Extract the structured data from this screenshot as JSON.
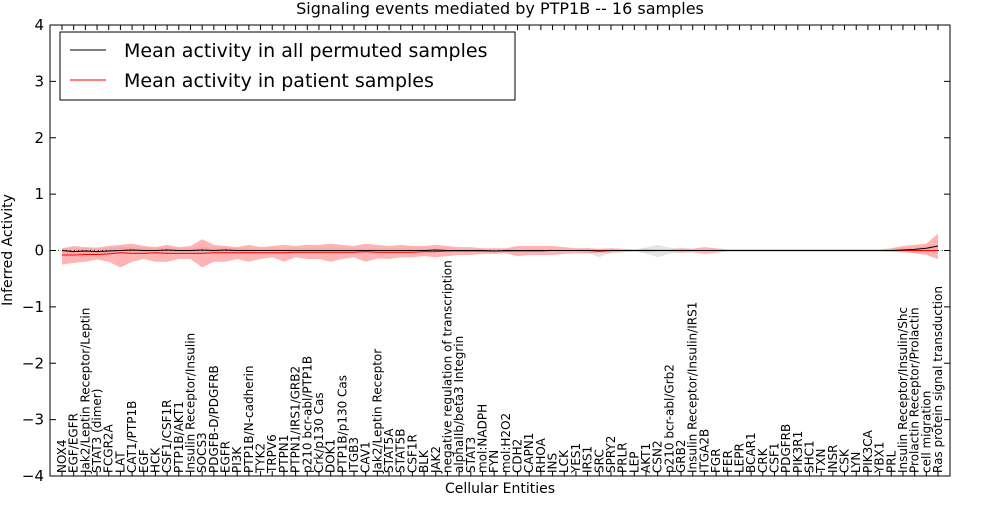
{
  "chart_data": {
    "type": "line",
    "title": "Signaling events mediated by PTP1B -- 16 samples",
    "xlabel": "Cellular Entities",
    "ylabel": "Inferred Activity",
    "ylim": [
      -4,
      4
    ],
    "yticks": [
      "4",
      "3",
      "2",
      "1",
      "0",
      "−1",
      "−2",
      "−3",
      "−4"
    ],
    "ytick_values": [
      4,
      3,
      2,
      1,
      0,
      -1,
      -2,
      -3,
      -4
    ],
    "legend_location": "top-left",
    "categories": [
      "NOX4",
      "EGF/EGFR",
      "Jak2/Leptin Receptor/Leptin",
      "STAT3 (dimer)",
      "FCGR2A",
      "LAT",
      "CAT1/PTP1B",
      "EGF",
      "HCK",
      "CSF1/CSF1R",
      "PTP1B/AKT1",
      "Insulin Receptor/Insulin",
      "SOCS3",
      "PDGFB-D/PDGFRB",
      "EGFR",
      "PI3K",
      "PTP1B/N-cadherin",
      "TYK2",
      "TRPV6",
      "PTPN1",
      "PTPN1/IRS1/GRB2",
      "p210 bcr-abl/PTP1B",
      "Crk/p130 Cas",
      "DOK1",
      "PTP1B/p130 Cas",
      "ITGB3",
      "CAV1",
      "Jak2/Leptin Receptor",
      "STAT5A",
      "STAT5B",
      "CSF1R",
      "BLK",
      "JAK2",
      "negative regulation of transcription",
      "alphaIIb/beta3 Integrin",
      "STAT3",
      "mol:NADPH",
      "FYN",
      "mol:H2O2",
      "CDH2",
      "CAPN1",
      "RHOA",
      "INS",
      "LCK",
      "YES1",
      "IRS1",
      "SRC",
      "SPRY2",
      "PRLR",
      "LEP",
      "AKT1",
      "CSN2",
      "p210 bcr-abl/Grb2",
      "GRB2",
      "Insulin Receptor/Insulin/IRS1",
      "ITGA2B",
      "FGR",
      "FER",
      "LEPR",
      "BCAR1",
      "CRK",
      "CSF1",
      "PDGFRB",
      "PIK3R1",
      "SHC1",
      "TXN",
      "INSR",
      "CSK",
      "LYN",
      "PIK3CA",
      "YBX1",
      "PRL",
      "Insulin Receptor/Insulin/Shc",
      "Prolactin Receptor/Prolactin",
      "cell migration",
      "Ras protein signal transduction"
    ],
    "series": [
      {
        "name": "Mean activity in all permuted samples",
        "color": "#000000",
        "values": [
          0.0,
          -0.02,
          -0.01,
          -0.02,
          -0.01,
          0.0,
          0.01,
          0.0,
          0.0,
          0.01,
          0.0,
          0.0,
          0.01,
          0.0,
          0.01,
          0.0,
          0.0,
          0.0,
          0.0,
          0.0,
          0.0,
          0.0,
          0.0,
          0.0,
          0.0,
          0.0,
          0.0,
          0.0,
          0.0,
          0.0,
          0.0,
          0.0,
          0.01,
          0.0,
          0.0,
          0.0,
          0.0,
          -0.01,
          0.0,
          0.0,
          0.0,
          0.0,
          0.0,
          0.0,
          0.0,
          0.0,
          -0.01,
          0.0,
          0.0,
          0.0,
          0.0,
          0.0,
          0.0,
          0.0,
          0.0,
          0.0,
          0.0,
          0.0,
          0.0,
          0.0,
          0.0,
          0.0,
          0.0,
          0.0,
          0.0,
          0.0,
          0.0,
          0.0,
          0.0,
          0.0,
          0.0,
          0.0,
          0.01,
          0.02,
          0.04,
          0.08
        ],
        "band_upper": [
          0.04,
          0.03,
          0.04,
          0.03,
          0.05,
          0.06,
          0.06,
          0.05,
          0.04,
          0.05,
          0.04,
          0.04,
          0.06,
          0.05,
          0.05,
          0.04,
          0.04,
          0.03,
          0.03,
          0.03,
          0.03,
          0.03,
          0.03,
          0.03,
          0.03,
          0.03,
          0.03,
          0.03,
          0.03,
          0.03,
          0.03,
          0.03,
          0.03,
          0.03,
          0.02,
          0.02,
          0.02,
          0.02,
          0.02,
          0.02,
          0.02,
          0.02,
          0.02,
          0.02,
          0.02,
          0.04,
          0.02,
          0.02,
          0.02,
          0.02,
          0.05,
          0.1,
          0.05,
          0.03,
          0.02,
          0.02,
          0.02,
          0.02,
          0.02,
          0.02,
          0.02,
          0.02,
          0.02,
          0.02,
          0.02,
          0.02,
          0.02,
          0.02,
          0.02,
          0.02,
          0.02,
          0.03,
          0.04,
          0.05,
          0.07,
          0.1
        ],
        "band_lower": [
          -0.05,
          -0.06,
          -0.05,
          -0.06,
          -0.05,
          -0.04,
          -0.04,
          -0.04,
          -0.04,
          -0.04,
          -0.04,
          -0.04,
          -0.05,
          -0.04,
          -0.04,
          -0.04,
          -0.04,
          -0.04,
          -0.03,
          -0.03,
          -0.03,
          -0.03,
          -0.03,
          -0.03,
          -0.03,
          -0.03,
          -0.03,
          -0.03,
          -0.03,
          -0.03,
          -0.03,
          -0.03,
          -0.03,
          -0.03,
          -0.02,
          -0.02,
          -0.02,
          -0.03,
          -0.02,
          -0.02,
          -0.02,
          -0.02,
          -0.02,
          -0.02,
          -0.02,
          -0.04,
          -0.12,
          -0.04,
          -0.02,
          -0.02,
          -0.05,
          -0.12,
          -0.06,
          -0.03,
          -0.02,
          -0.02,
          -0.02,
          -0.02,
          -0.02,
          -0.02,
          -0.02,
          -0.02,
          -0.02,
          -0.02,
          -0.02,
          -0.02,
          -0.02,
          -0.02,
          -0.02,
          -0.02,
          -0.02,
          -0.03,
          -0.03,
          -0.03,
          -0.03,
          -0.02
        ]
      },
      {
        "name": "Mean activity in patient samples",
        "color": "#ff0000",
        "values": [
          -0.08,
          -0.08,
          -0.07,
          -0.07,
          -0.06,
          -0.04,
          -0.05,
          -0.05,
          -0.04,
          -0.05,
          -0.05,
          -0.05,
          -0.05,
          -0.04,
          -0.04,
          -0.04,
          -0.04,
          -0.04,
          -0.04,
          -0.04,
          -0.03,
          -0.03,
          -0.03,
          -0.03,
          -0.03,
          -0.03,
          -0.02,
          -0.03,
          -0.03,
          -0.03,
          -0.03,
          -0.02,
          -0.02,
          -0.01,
          -0.01,
          -0.01,
          -0.01,
          -0.01,
          -0.01,
          -0.01,
          -0.01,
          -0.01,
          0.0,
          0.0,
          0.0,
          0.0,
          0.0,
          0.0,
          0.0,
          0.0,
          0.0,
          0.0,
          0.0,
          0.0,
          0.0,
          0.0,
          0.0,
          0.0,
          0.0,
          0.0,
          0.0,
          0.0,
          0.0,
          0.0,
          0.0,
          0.0,
          0.0,
          0.0,
          0.0,
          0.0,
          0.0,
          0.0,
          0.0,
          0.0,
          0.0,
          0.0
        ],
        "band_upper": [
          0.04,
          0.08,
          0.06,
          0.05,
          0.08,
          0.1,
          0.12,
          0.08,
          0.06,
          0.1,
          0.06,
          0.08,
          0.2,
          0.1,
          0.08,
          0.06,
          0.1,
          0.06,
          0.08,
          0.1,
          0.08,
          0.1,
          0.1,
          0.12,
          0.1,
          0.08,
          0.12,
          0.1,
          0.08,
          0.1,
          0.08,
          0.08,
          0.1,
          0.08,
          0.06,
          0.06,
          0.04,
          0.04,
          0.04,
          0.08,
          0.08,
          0.08,
          0.08,
          0.06,
          0.04,
          0.04,
          0.03,
          0.04,
          0.03,
          0.02,
          0.03,
          0.02,
          0.02,
          0.04,
          0.03,
          0.06,
          0.04,
          0.02,
          0.02,
          0.02,
          0.02,
          0.02,
          0.02,
          0.02,
          0.02,
          0.02,
          0.02,
          0.02,
          0.02,
          0.02,
          0.02,
          0.04,
          0.08,
          0.1,
          0.12,
          0.3
        ],
        "band_lower": [
          -0.25,
          -0.22,
          -0.2,
          -0.16,
          -0.2,
          -0.3,
          -0.2,
          -0.15,
          -0.2,
          -0.2,
          -0.15,
          -0.15,
          -0.3,
          -0.2,
          -0.2,
          -0.15,
          -0.2,
          -0.15,
          -0.12,
          -0.2,
          -0.12,
          -0.15,
          -0.15,
          -0.2,
          -0.15,
          -0.12,
          -0.2,
          -0.14,
          -0.15,
          -0.12,
          -0.12,
          -0.1,
          -0.12,
          -0.1,
          -0.08,
          -0.08,
          -0.06,
          -0.06,
          -0.05,
          -0.1,
          -0.08,
          -0.08,
          -0.08,
          -0.06,
          -0.05,
          -0.05,
          -0.04,
          -0.04,
          -0.03,
          -0.02,
          -0.03,
          -0.02,
          -0.02,
          -0.04,
          -0.03,
          -0.06,
          -0.04,
          -0.02,
          -0.02,
          -0.02,
          -0.02,
          -0.02,
          -0.02,
          -0.02,
          -0.02,
          -0.02,
          -0.02,
          -0.02,
          -0.02,
          -0.02,
          -0.02,
          -0.02,
          -0.03,
          -0.05,
          -0.08,
          -0.15
        ]
      }
    ],
    "band_colors": {
      "permuted": "#d3d3d3",
      "patient": "#ff8080"
    }
  }
}
